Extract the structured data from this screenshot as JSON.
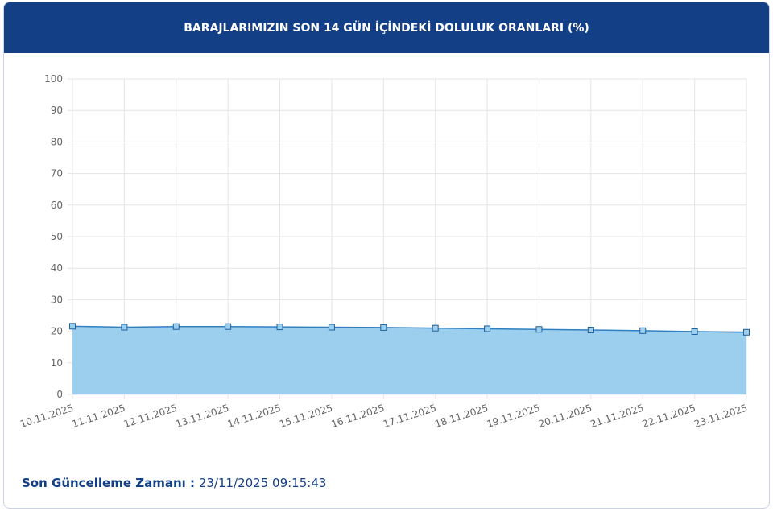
{
  "chart_data": {
    "type": "area",
    "title": "BARAJLARIMIZIN SON 14 GÜN İÇİNDEKİ DOLULUK ORANLARI (%)",
    "categories": [
      "10.11.2025",
      "11.11.2025",
      "12.11.2025",
      "13.11.2025",
      "14.11.2025",
      "15.11.2025",
      "16.11.2025",
      "17.11.2025",
      "18.11.2025",
      "19.11.2025",
      "20.11.2025",
      "21.11.2025",
      "22.11.2025",
      "23.11.2025"
    ],
    "values": [
      21.6,
      21.3,
      21.5,
      21.5,
      21.4,
      21.3,
      21.2,
      21.0,
      20.8,
      20.6,
      20.4,
      20.2,
      19.9,
      19.7
    ],
    "color": "#2f80c2",
    "fill_color": "#9ccfee",
    "ylim": [
      0,
      100
    ],
    "yticks": [
      0,
      10,
      20,
      30,
      40,
      50,
      60,
      70,
      80,
      90,
      100
    ],
    "grid": true
  },
  "footer": {
    "label": "Son Güncelleme Zamanı :",
    "timestamp": "23/11/2025 09:15:43"
  }
}
